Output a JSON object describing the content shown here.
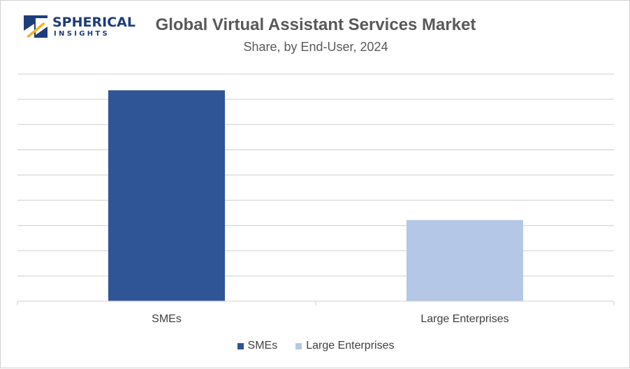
{
  "logo": {
    "name": "SPHERICAL",
    "tagline": "INSIGHTS",
    "colors": {
      "dark": "#1f3d7a",
      "accent": "#f0b323"
    }
  },
  "chart_data": {
    "type": "bar",
    "title": "Global Virtual Assistant Services Market",
    "subtitle": "Share, by End-User, 2024",
    "categories": [
      "SMEs",
      "Large Enterprises"
    ],
    "values": [
      65,
      25
    ],
    "colors": [
      "#2f5597",
      "#b4c7e7"
    ],
    "ylim": [
      0,
      70
    ],
    "gridlines": 9,
    "grid": true,
    "xlabel": "",
    "ylabel": "",
    "legend": {
      "position": "bottom",
      "entries": [
        {
          "label": "SMEs",
          "color": "#2f5597"
        },
        {
          "label": "Large Enterprises",
          "color": "#b4c7e7"
        }
      ]
    }
  }
}
